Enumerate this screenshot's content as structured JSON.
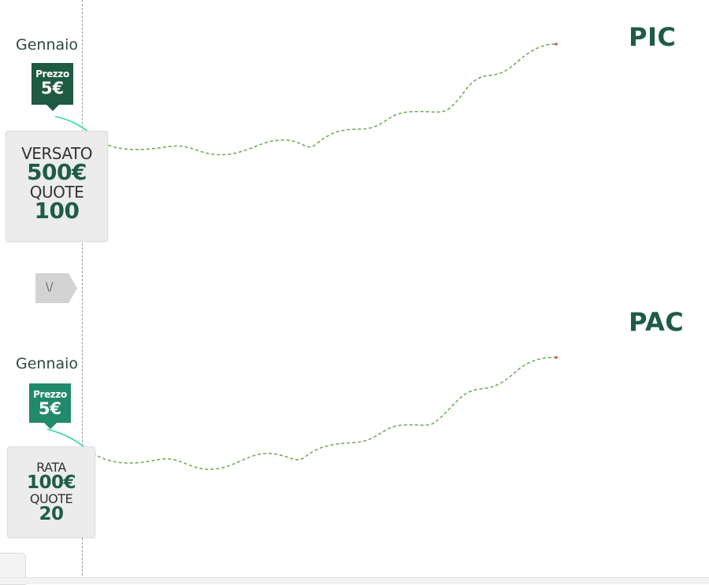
{
  "colors": {
    "dark_green": "#1e5c45",
    "tag_dark": "#1f5a43",
    "tag_light": "#22896a",
    "curve": "#6aa84f",
    "curve_start": "#2fd9a3",
    "end_dot": "#d9534f"
  },
  "pic": {
    "title": "PIC",
    "month": "Gennaio",
    "price_label": "Prezzo",
    "price_value": "5€",
    "card_label_1": "VERSATO",
    "card_value_1": "500€",
    "card_label_2": "QUOTE",
    "card_value_2": "100"
  },
  "nav": {
    "arrow_glyph": "\\/"
  },
  "pac": {
    "title": "PAC",
    "month": "Gennaio",
    "price_label": "Prezzo",
    "price_value": "5€",
    "card_label_1": "RATA",
    "card_value_1": "100€",
    "card_label_2": "QUOTE",
    "card_value_2": "20"
  }
}
